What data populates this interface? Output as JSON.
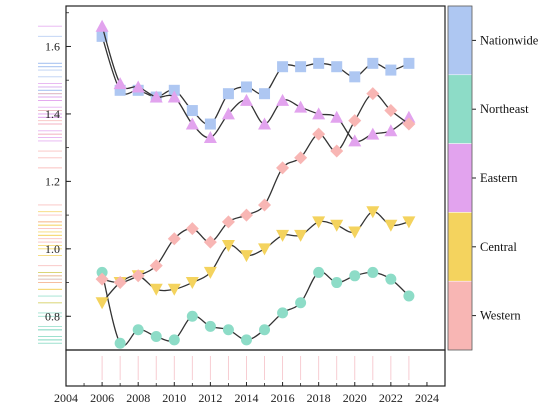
{
  "chart_data": {
    "type": "line",
    "title": "",
    "xlabel": "",
    "ylabel": "",
    "xlim": [
      2004,
      2025
    ],
    "ylim": [
      0.7,
      1.72
    ],
    "x_ticks": [
      "2004",
      "2006",
      "2008",
      "2010",
      "2012",
      "2014",
      "2016",
      "2018",
      "2020",
      "2022",
      "2024"
    ],
    "y_ticks": [
      "0.8",
      "1.0",
      "1.2",
      "1.4",
      "1.6"
    ],
    "x": [
      2006,
      2007,
      2008,
      2009,
      2010,
      2011,
      2012,
      2013,
      2014,
      2015,
      2016,
      2017,
      2018,
      2019,
      2020,
      2021,
      2022,
      2023
    ],
    "legend_position": "right",
    "grid": false,
    "series": [
      {
        "name": "Nationwide",
        "color": "#aec7f2",
        "marker": "square",
        "values": [
          1.63,
          1.47,
          1.47,
          1.45,
          1.47,
          1.41,
          1.37,
          1.46,
          1.48,
          1.46,
          1.54,
          1.54,
          1.55,
          1.54,
          1.51,
          1.55,
          1.53,
          1.55
        ]
      },
      {
        "name": "Northeast",
        "color": "#8ddcc7",
        "marker": "circle",
        "values": [
          0.93,
          0.72,
          0.76,
          0.74,
          0.73,
          0.8,
          0.77,
          0.76,
          0.73,
          0.76,
          0.81,
          0.84,
          0.93,
          0.9,
          0.92,
          0.93,
          0.91,
          0.86
        ]
      },
      {
        "name": "Eastern",
        "color": "#e2a3ee",
        "marker": "triangle-up",
        "values": [
          1.66,
          1.49,
          1.48,
          1.45,
          1.45,
          1.37,
          1.33,
          1.4,
          1.44,
          1.37,
          1.44,
          1.42,
          1.4,
          1.39,
          1.32,
          1.34,
          1.35,
          1.39
        ]
      },
      {
        "name": "Central",
        "color": "#f4d35e",
        "marker": "triangle-down",
        "values": [
          0.84,
          0.9,
          0.92,
          0.88,
          0.88,
          0.9,
          0.93,
          1.01,
          0.98,
          1.0,
          1.04,
          1.04,
          1.08,
          1.07,
          1.05,
          1.11,
          1.07,
          1.08
        ]
      },
      {
        "name": "Western",
        "color": "#f8b6b4",
        "marker": "diamond",
        "values": [
          0.91,
          0.9,
          0.92,
          0.95,
          1.03,
          1.06,
          1.02,
          1.08,
          1.1,
          1.13,
          1.24,
          1.27,
          1.34,
          1.29,
          1.38,
          1.46,
          1.41,
          1.37
        ]
      }
    ]
  }
}
